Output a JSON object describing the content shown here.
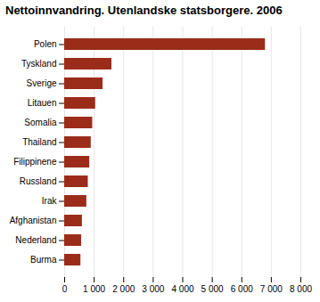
{
  "chart_data": {
    "type": "bar",
    "orientation": "horizontal",
    "title": "Nettoinnvandring. Utenlandske statsborgere. 2006",
    "categories": [
      "Polen",
      "Tyskland",
      "Sverige",
      "Litauen",
      "Somalia",
      "Thailand",
      "Filippinene",
      "Russland",
      "Irak",
      "Afghanistan",
      "Nederland",
      "Burma"
    ],
    "values": [
      6800,
      1600,
      1300,
      1050,
      950,
      900,
      850,
      800,
      750,
      600,
      575,
      550
    ],
    "color": "#9b2c1a",
    "xlim": [
      0,
      8000
    ],
    "xticks": [
      0,
      {
        "value": 1000,
        "label": "1 000"
      },
      {
        "value": 2000,
        "label": "2 000"
      },
      {
        "value": 3000,
        "label": "3 000"
      },
      {
        "value": 4000,
        "label": "4 000"
      },
      {
        "value": 5000,
        "label": "5 000"
      },
      {
        "value": 6000,
        "label": "6 000"
      },
      {
        "value": 7000,
        "label": "7 000"
      },
      {
        "value": 8000,
        "label": "8 000"
      }
    ],
    "grid": true
  }
}
